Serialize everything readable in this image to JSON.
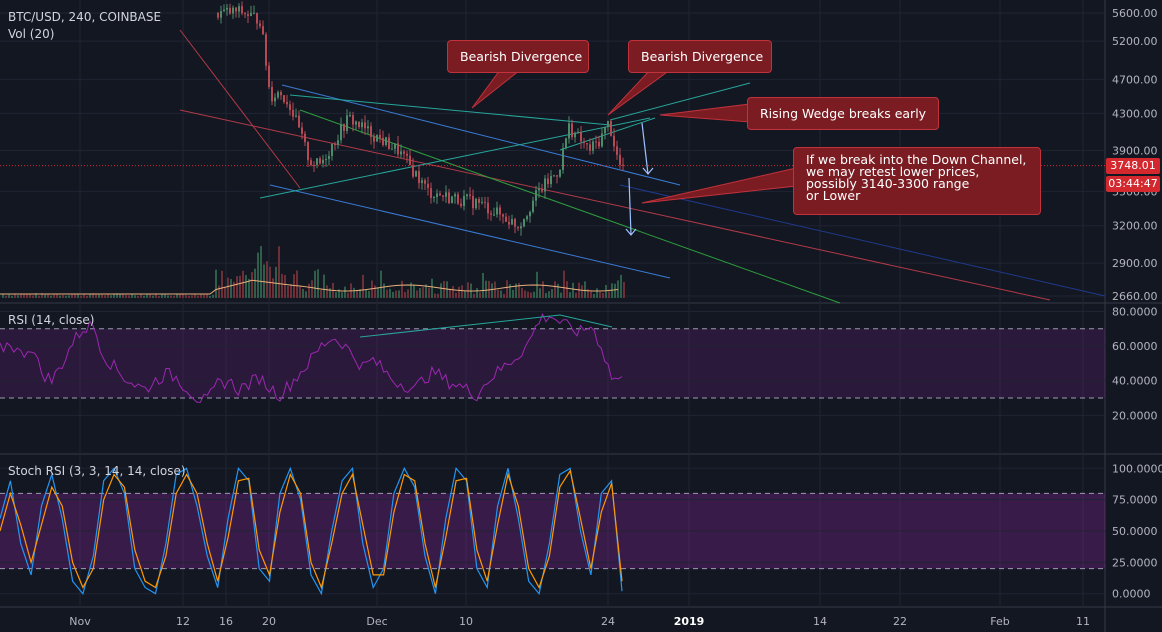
{
  "header": {
    "symbol_line": "BTC/USD, 240, COINBASE",
    "vol_label": "Vol (20)"
  },
  "rsi_panel": {
    "label": "RSI (14, close)"
  },
  "stoch_panel": {
    "label": "Stoch RSI (3, 3, 14, 14, close)"
  },
  "price_badge": {
    "price": "3748.01",
    "countdown": "03:44:47"
  },
  "annotations": [
    {
      "id": "bearish-1",
      "text": "Bearish Divergence"
    },
    {
      "id": "bearish-2",
      "text": "Bearish Divergence"
    },
    {
      "id": "wedge",
      "text": "Rising Wedge breaks early"
    },
    {
      "id": "channel",
      "text": "If we break into the Down Channel,\nwe may retest lower prices,\npossibly 3140-3300 range\nor Lower"
    }
  ],
  "colors": {
    "background": "#131722",
    "grid": "#1f2433",
    "candle_up": "#4f8a6a",
    "candle_down": "#b54a55",
    "callout_bg": "#7a1c22",
    "callout_border": "#c1323c",
    "rsi_line": "#9c27b0",
    "stoch_k": "#2196f3",
    "stoch_d": "#ff9800"
  },
  "chart_data": [
    {
      "type": "line",
      "subtype": "candlestick",
      "title": "BTC/USD, 240, COINBASE",
      "yaxis_ticks": [
        "5600.00",
        "5200.00",
        "4700.00",
        "4300.00",
        "3900.00",
        "3500.00",
        "3200.00",
        "2900.00",
        "2660.00"
      ],
      "ylim": [
        2560,
        5880
      ],
      "log_scale": true,
      "xaxis_ticks": [
        "Nov",
        "12",
        "16",
        "20",
        "Dec",
        "10",
        "24",
        "2019",
        "14",
        "22",
        "Feb",
        "11"
      ],
      "last_price": 3748.01,
      "price_path": [
        {
          "date": "Nov 14",
          "close": 5600
        },
        {
          "date": "Nov 15",
          "close": 5600
        },
        {
          "date": "Nov 17",
          "close": 5620
        },
        {
          "date": "Nov 19",
          "close": 5500
        },
        {
          "date": "Nov 20",
          "close": 4500
        },
        {
          "date": "Nov 21",
          "close": 4550
        },
        {
          "date": "Nov 22",
          "close": 4400
        },
        {
          "date": "Nov 24",
          "close": 3800
        },
        {
          "date": "Nov 25",
          "close": 3750
        },
        {
          "date": "Nov 26",
          "close": 3900
        },
        {
          "date": "Nov 28",
          "close": 4250
        },
        {
          "date": "Nov 30",
          "close": 4100
        },
        {
          "date": "Dec 3",
          "close": 3900
        },
        {
          "date": "Dec 6",
          "close": 3500
        },
        {
          "date": "Dec 8",
          "close": 3450
        },
        {
          "date": "Dec 11",
          "close": 3400
        },
        {
          "date": "Dec 13",
          "close": 3300
        },
        {
          "date": "Dec 15",
          "close": 3200
        },
        {
          "date": "Dec 17",
          "close": 3500
        },
        {
          "date": "Dec 19",
          "close": 3700
        },
        {
          "date": "Dec 20",
          "close": 4150
        },
        {
          "date": "Dec 22",
          "close": 3900
        },
        {
          "date": "Dec 23",
          "close": 4000
        },
        {
          "date": "Dec 24",
          "close": 4200
        },
        {
          "date": "Dec 25",
          "close": 3748
        }
      ],
      "volume_ma_period": 20
    },
    {
      "type": "line",
      "title": "RSI (14, close)",
      "yaxis_ticks": [
        "80.0000",
        "60.0000",
        "40.0000",
        "20.0000"
      ],
      "ylim": [
        0,
        82
      ],
      "bands": [
        70,
        30
      ],
      "values": [
        58,
        62,
        55,
        60,
        45,
        40,
        50,
        62,
        70,
        72,
        55,
        48,
        42,
        38,
        35,
        40,
        44,
        42,
        36,
        30,
        28,
        38,
        40,
        35,
        38,
        42,
        36,
        32,
        38,
        45,
        52,
        60,
        65,
        62,
        55,
        48,
        52,
        46,
        40,
        38,
        35,
        42,
        45,
        40,
        38,
        35,
        32,
        40,
        45,
        50,
        55,
        62,
        75,
        78,
        74,
        70,
        68,
        72,
        60,
        42,
        40
      ]
    },
    {
      "type": "line",
      "title": "Stoch RSI (3, 3, 14, 14, close)",
      "yaxis_ticks": [
        "100.0000",
        "75.0000",
        "50.0000",
        "25.0000",
        "0.0000"
      ],
      "ylim": [
        -5,
        105
      ],
      "bands": [
        80,
        20
      ],
      "series": [
        {
          "name": "K",
          "values": [
            60,
            90,
            40,
            15,
            70,
            95,
            60,
            10,
            0,
            30,
            90,
            100,
            80,
            20,
            5,
            0,
            40,
            95,
            100,
            70,
            30,
            5,
            60,
            100,
            90,
            20,
            10,
            80,
            100,
            75,
            15,
            0,
            50,
            90,
            100,
            40,
            5,
            20,
            80,
            100,
            85,
            30,
            0,
            60,
            100,
            90,
            20,
            5,
            70,
            100,
            60,
            10,
            0,
            40,
            95,
            100,
            50,
            15,
            80,
            90,
            2
          ]
        },
        {
          "name": "D",
          "values": [
            50,
            80,
            55,
            25,
            55,
            85,
            70,
            25,
            5,
            20,
            75,
            95,
            85,
            35,
            10,
            5,
            30,
            80,
            95,
            80,
            40,
            10,
            45,
            90,
            92,
            35,
            15,
            65,
            95,
            80,
            25,
            5,
            40,
            80,
            95,
            55,
            15,
            15,
            65,
            95,
            90,
            40,
            5,
            45,
            90,
            92,
            35,
            10,
            55,
            95,
            70,
            20,
            5,
            30,
            85,
            98,
            60,
            20,
            65,
            88,
            10
          ]
        }
      ]
    }
  ]
}
